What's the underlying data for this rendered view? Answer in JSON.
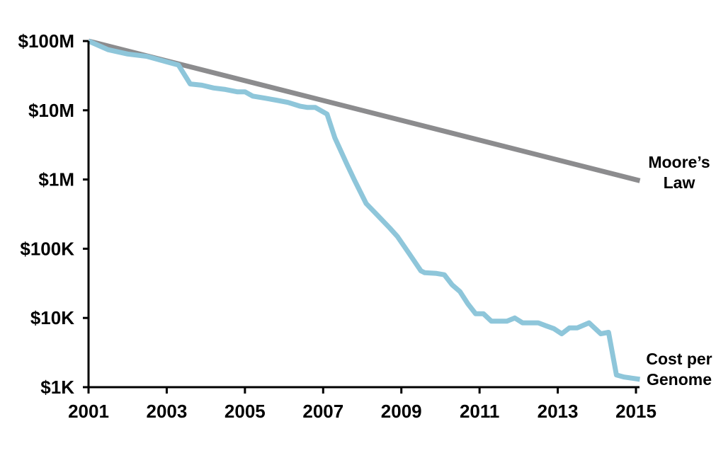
{
  "chart_data": {
    "type": "line",
    "title": "",
    "xlabel": "",
    "ylabel": "",
    "y_scale": "log",
    "ylim": [
      1000,
      100000000
    ],
    "xlim": [
      2001,
      2015.2
    ],
    "grid": false,
    "legend": "none",
    "x_ticks": [
      {
        "value": 2001,
        "label": "2001"
      },
      {
        "value": 2003,
        "label": "2003"
      },
      {
        "value": 2005,
        "label": "2005"
      },
      {
        "value": 2007,
        "label": "2007"
      },
      {
        "value": 2009,
        "label": "2009"
      },
      {
        "value": 2011,
        "label": "2011"
      },
      {
        "value": 2013,
        "label": "2013"
      },
      {
        "value": 2015,
        "label": "2015"
      }
    ],
    "y_ticks": [
      {
        "value": 100000000,
        "label": "$100M"
      },
      {
        "value": 10000000,
        "label": "$10M"
      },
      {
        "value": 1000000,
        "label": "$1M"
      },
      {
        "value": 100000,
        "label": "$100K"
      },
      {
        "value": 10000,
        "label": "$10K"
      },
      {
        "value": 1000,
        "label": "$1K"
      }
    ],
    "series": [
      {
        "name": "Moore’s Law",
        "label_lines": [
          "Moore’s",
          "Law"
        ],
        "color": "#8c8c8e",
        "x": [
          2001,
          2015.1
        ],
        "y": [
          100000000,
          960000
        ]
      },
      {
        "name": "Cost per Genome",
        "label_lines": [
          "Cost per",
          "Genome"
        ],
        "color": "#8ec6da",
        "x": [
          2001,
          2001.5,
          2002,
          2002.5,
          2003,
          2003.3,
          2003.6,
          2003.9,
          2004.2,
          2004.5,
          2004.8,
          2005.0,
          2005.2,
          2005.5,
          2005.8,
          2006.1,
          2006.4,
          2006.6,
          2006.8,
          2007.1,
          2007.3,
          2007.6,
          2007.8,
          2008.1,
          2008.4,
          2008.7,
          2008.9,
          2009.2,
          2009.5,
          2009.6,
          2009.9,
          2010.1,
          2010.3,
          2010.5,
          2010.7,
          2010.9,
          2011.1,
          2011.3,
          2011.5,
          2011.7,
          2011.9,
          2012.1,
          2012.3,
          2012.5,
          2012.7,
          2012.9,
          2013.1,
          2013.3,
          2013.5,
          2013.8,
          2014.1,
          2014.3,
          2014.5,
          2014.7,
          2014.9,
          2015.1
        ],
        "y": [
          100000000,
          75000000,
          65000000,
          60000000,
          50000000,
          45000000,
          24000000,
          23000000,
          21000000,
          20000000,
          18500000,
          18500000,
          16000000,
          15000000,
          14000000,
          13000000,
          11500000,
          11000000,
          11000000,
          8800000,
          4000000,
          1700000,
          980000,
          450000,
          300000,
          200000,
          150000,
          85000,
          48000,
          45000,
          44000,
          42000,
          30000,
          24000,
          16000,
          11500,
          11500,
          9000,
          9000,
          9000,
          10000,
          8500,
          8500,
          8500,
          7700,
          7000,
          5900,
          7200,
          7200,
          8500,
          5900,
          6200,
          1500,
          1400,
          1350,
          1300
        ]
      }
    ]
  }
}
